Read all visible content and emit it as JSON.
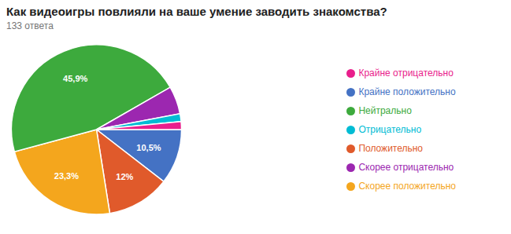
{
  "chart_data": {
    "type": "pie",
    "title": "Как видеоигры повлияли на ваше умение заводить знакомства?",
    "subtitle": "133 ответа",
    "categories": [
      "Крайне положительно",
      "Положительно",
      "Скорее положительно",
      "Нейтрально",
      "Скорее отрицательно",
      "Отрицательно",
      "Крайне отрицательно"
    ],
    "values": [
      10.5,
      12.0,
      23.3,
      45.9,
      5.3,
      1.5,
      1.5
    ],
    "value_labels": [
      "10,5%",
      "12%",
      "23,3%",
      "45,9%",
      null,
      null,
      null
    ],
    "colors": [
      "#4472c4",
      "#e05a2b",
      "#f4a61d",
      "#3daa3d",
      "#9c27b0",
      "#00bcd4",
      "#e91e8c"
    ],
    "data_labels": true,
    "legend": "right"
  }
}
